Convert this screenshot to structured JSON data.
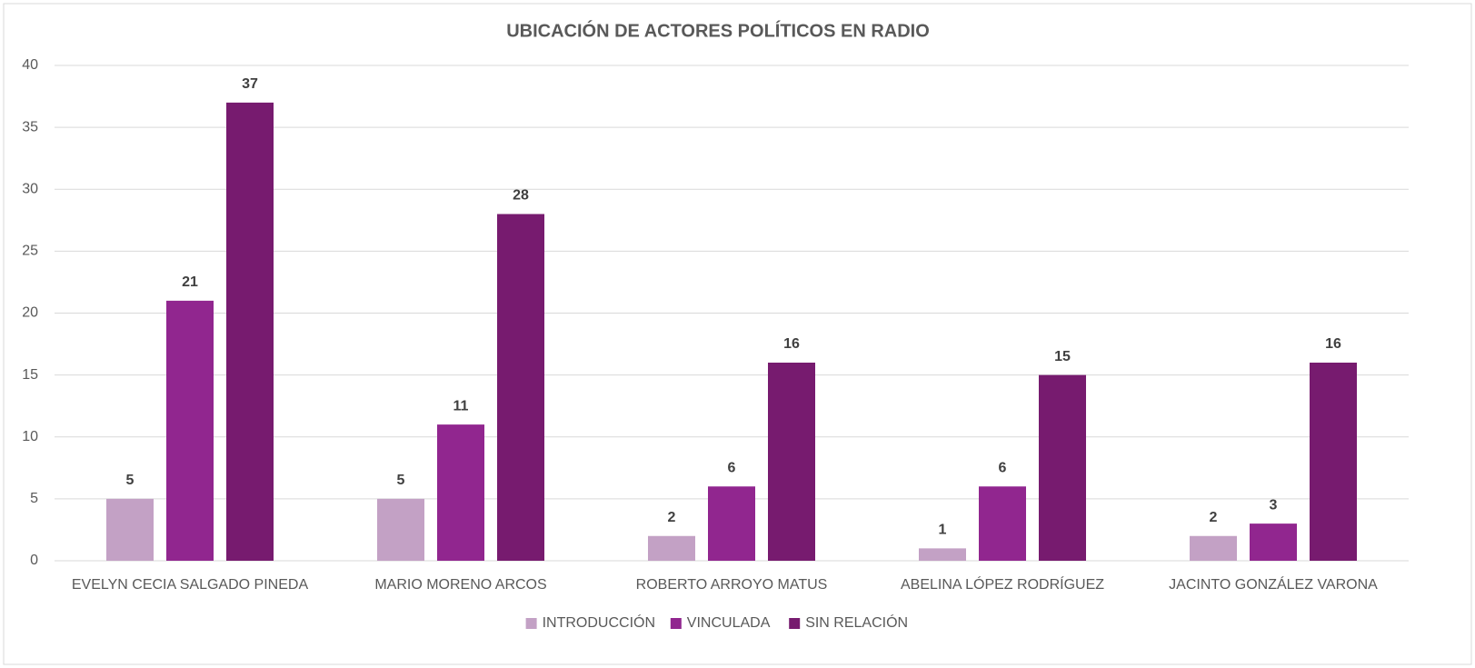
{
  "chart_data": {
    "type": "bar",
    "title": "UBICACIÓN DE ACTORES POLÍTICOS EN RADIO",
    "categories": [
      "EVELYN CECIA SALGADO PINEDA",
      "MARIO MORENO ARCOS",
      "ROBERTO ARROYO MATUS",
      "ABELINA LÓPEZ RODRÍGUEZ",
      "JACINTO GONZÁLEZ VARONA"
    ],
    "series": [
      {
        "name": "INTRODUCCIÓN",
        "color": "#c3a1c5",
        "values": [
          5,
          5,
          2,
          1,
          2
        ]
      },
      {
        "name": "VINCULADA",
        "color": "#91268f",
        "values": [
          21,
          11,
          6,
          6,
          3
        ]
      },
      {
        "name": "SIN RELACIÓN",
        "color": "#771b6f",
        "values": [
          37,
          28,
          16,
          15,
          16
        ]
      }
    ],
    "ylim": [
      0,
      40
    ],
    "yticks": [
      0,
      5,
      10,
      15,
      20,
      25,
      30,
      35,
      40
    ],
    "grid": true,
    "legend": "bottom"
  }
}
